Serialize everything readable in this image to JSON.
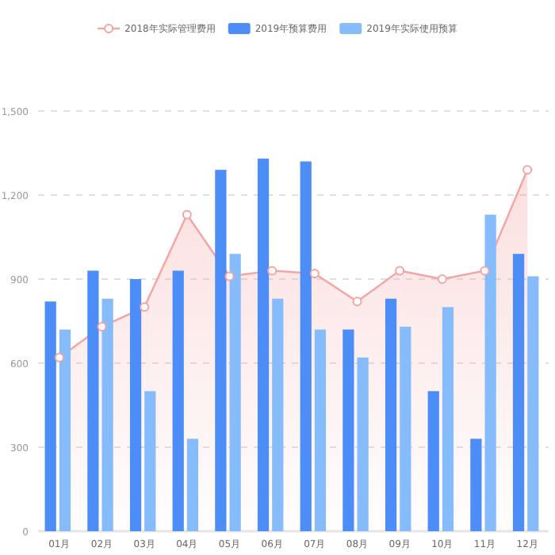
{
  "chart_data": {
    "type": "bar",
    "categories": [
      "01月",
      "02月",
      "03月",
      "04月",
      "05月",
      "06月",
      "07月",
      "08月",
      "09月",
      "10月",
      "11月",
      "12月"
    ],
    "series": [
      {
        "name": "2018年实际管理费用",
        "type": "area",
        "color": "#f5a3a3",
        "values": [
          620,
          730,
          800,
          1130,
          910,
          930,
          920,
          820,
          930,
          900,
          930,
          1290
        ]
      },
      {
        "name": "2019年预算费用",
        "color": "#4d8df8",
        "values": [
          820,
          930,
          900,
          930,
          1290,
          1330,
          1320,
          720,
          830,
          500,
          330,
          990
        ]
      },
      {
        "name": "2019年实际使用预算",
        "color": "#86bcfb",
        "values": [
          720,
          830,
          500,
          330,
          990,
          830,
          720,
          620,
          730,
          800,
          1130,
          910
        ]
      }
    ],
    "ylim": [
      0,
      1500
    ],
    "yticks": [
      0,
      300,
      600,
      900,
      {
        "value": 1200,
        "label": "1,200"
      },
      {
        "value": 1500,
        "label": "1,500"
      }
    ],
    "grid": "y",
    "legend": "top",
    "marker": "circle",
    "line_style": "solid"
  }
}
